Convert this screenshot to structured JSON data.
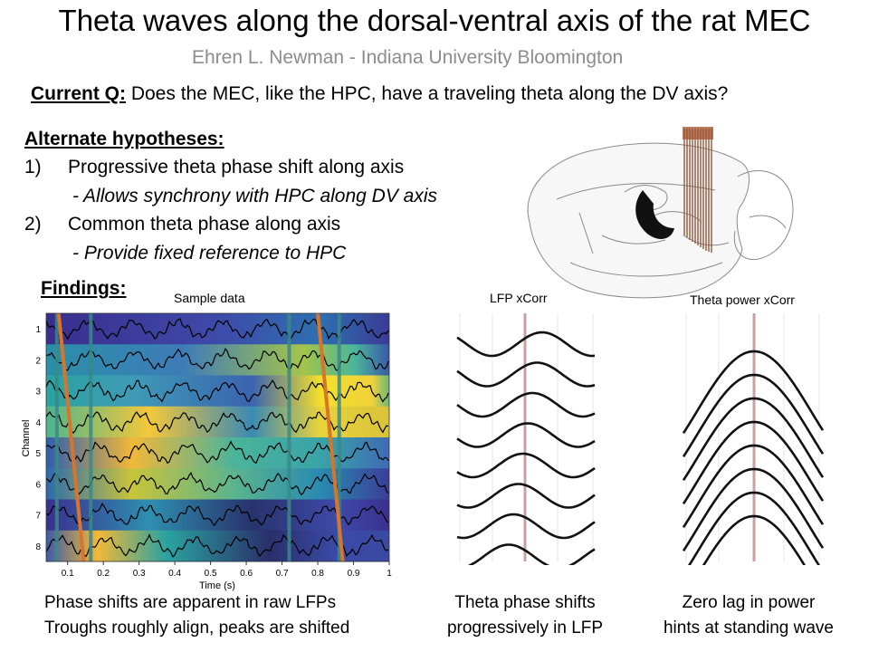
{
  "title": "Theta waves along the dorsal-ventral axis of the rat MEC",
  "subtitle": "Ehren L. Newman -  Indiana University Bloomington",
  "question": {
    "label": "Current Q:",
    "text": " Does the MEC, like the HPC, have a traveling theta along the DV axis?"
  },
  "hypotheses": {
    "heading": "Alternate hypotheses:",
    "items": [
      {
        "num": "1)",
        "text": "Progressive theta phase shift along axis",
        "sub": "- Allows synchrony with HPC along DV axis"
      },
      {
        "num": "2)",
        "text": "Common theta phase along axis",
        "sub": "- Provide fixed reference to HPC"
      }
    ]
  },
  "findings": {
    "heading": "Findings:",
    "sample_title": "Sample data",
    "lfp_title": "LFP xCorr",
    "power_title": "Theta power xCorr",
    "caption_left": [
      "Phase shifts are apparent in raw LFPs",
      "Troughs roughly align, peaks are shifted"
    ],
    "caption_mid": [
      "Theta phase shifts",
      "progressively in LFP"
    ],
    "caption_right": [
      "Zero lag in power",
      "hints at standing wave"
    ]
  },
  "chart_data": [
    {
      "type": "heatmap",
      "title": "Sample data",
      "xlabel": "Time (s)",
      "ylabel": "Channel",
      "xlim": [
        0.04,
        1.0
      ],
      "x_ticks": [
        "0.1",
        "0.2",
        "0.3",
        "0.4",
        "0.5",
        "0.6",
        "0.7",
        "0.8",
        "0.9",
        "1"
      ],
      "channels": [
        "1",
        "2",
        "3",
        "4",
        "5",
        "6",
        "7",
        "8"
      ],
      "trough_markers_s": [
        0.07,
        0.165,
        0.72,
        0.86
      ],
      "colors": {
        "low": "#3b2c8c",
        "mid": "#1fa5a0",
        "high": "#f6df28",
        "trace": "#000000",
        "marker_teal": "#3a8a88",
        "marker_orange": "#d9742b"
      }
    },
    {
      "type": "line",
      "title": "LFP xCorr",
      "series_count": 8,
      "note": "phase shifts progressively across channels"
    },
    {
      "type": "line",
      "title": "Theta power xCorr",
      "series_count": 8,
      "note": "peaks aligned at zero lag"
    }
  ]
}
